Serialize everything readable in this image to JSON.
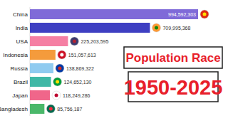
{
  "chart_data": {
    "type": "bar",
    "orientation": "horizontal",
    "title": "Population Race",
    "subtitle": "1950-2025",
    "categories": [
      "China",
      "India",
      "USA",
      "Indonesia",
      "Russia",
      "Brazil",
      "Japan",
      "Bangladesh"
    ],
    "values": [
      994592303,
      709995368,
      225203595,
      151057613,
      138869322,
      124652130,
      118249286,
      85756187
    ],
    "value_labels": [
      "994,592,303",
      "709,995,368",
      "225,203,595",
      "151,057,613",
      "138,869,322",
      "124,652,130",
      "118,249,286",
      "85,756,187"
    ],
    "colors": [
      "#7f6ad8",
      "#3e3fc2",
      "#f57fa3",
      "#f49b3c",
      "#8fcbf0",
      "#3fb8a6",
      "#f0668a",
      "#4ab86a"
    ],
    "xlim": [
      0,
      994592303
    ],
    "data_labels": true,
    "tick_labels": false,
    "grid": false
  }
}
